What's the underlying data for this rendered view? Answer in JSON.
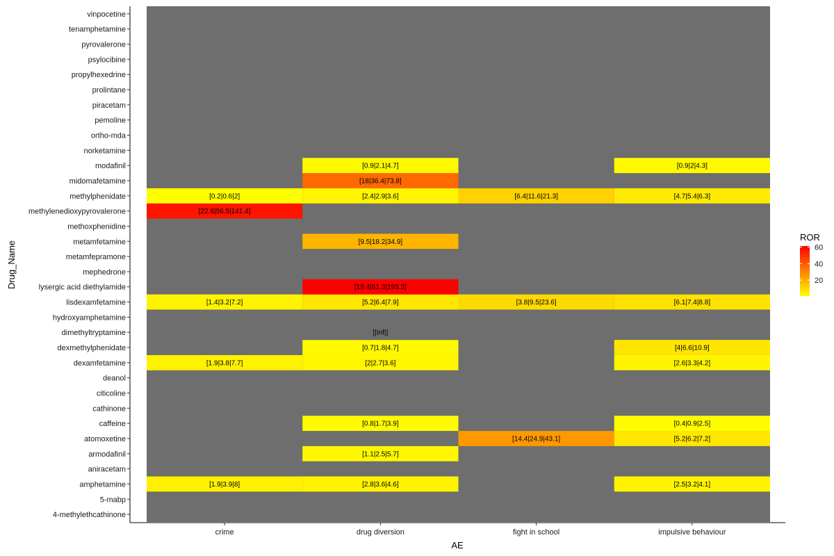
{
  "chart_data": {
    "type": "heatmap",
    "xlabel": "AE",
    "ylabel": "Drug_Name",
    "x_categories": [
      "crime",
      "drug diversion",
      "fight in school",
      "impulsive behaviour"
    ],
    "y_categories": [
      "4-methylethcathinone",
      "5-mabp",
      "amphetamine",
      "aniracetam",
      "armodafinil",
      "atomoxetine",
      "caffeine",
      "cathinone",
      "citicoline",
      "deanol",
      "dexamfetamine",
      "dexmethylphenidate",
      "dimethyltryptamine",
      "hydroxyamphetamine",
      "lisdexamfetamine",
      "lysergic acid diethylamide",
      "mephedrone",
      "metamfepramone",
      "metamfetamine",
      "methoxphenidine",
      "methylenedioxypyrovalerone",
      "methylphenidate",
      "midomafetamine",
      "modafinil",
      "norketamine",
      "ortho-mda",
      "pemoline",
      "piracetam",
      "prolintane",
      "propylhexedrine",
      "psylocibine",
      "pyrovalerone",
      "tenamphetamine",
      "vinpocetine"
    ],
    "cells": [
      {
        "drug": "amphetamine",
        "ae": "crime",
        "ror": 3.9,
        "label": "[1.9|3.9|8]"
      },
      {
        "drug": "amphetamine",
        "ae": "drug diversion",
        "ror": 3.6,
        "label": "[2.8|3.6|4.6]"
      },
      {
        "drug": "amphetamine",
        "ae": "impulsive behaviour",
        "ror": 3.2,
        "label": "[2.5|3.2|4.1]"
      },
      {
        "drug": "armodafinil",
        "ae": "drug diversion",
        "ror": 2.5,
        "label": "[1.1|2.5|5.7]"
      },
      {
        "drug": "atomoxetine",
        "ae": "fight in school",
        "ror": 24.9,
        "label": "[14.4|24.9|43.1]"
      },
      {
        "drug": "atomoxetine",
        "ae": "impulsive behaviour",
        "ror": 6.2,
        "label": "[5.2|6.2|7.2]"
      },
      {
        "drug": "caffeine",
        "ae": "drug diversion",
        "ror": 1.7,
        "label": "[0.8|1.7|3.9]"
      },
      {
        "drug": "caffeine",
        "ae": "impulsive behaviour",
        "ror": 0.9,
        "label": "[0.4|0.9|2.5]"
      },
      {
        "drug": "dexamfetamine",
        "ae": "crime",
        "ror": 3.8,
        "label": "[1.9|3.8|7.7]"
      },
      {
        "drug": "dexamfetamine",
        "ae": "drug diversion",
        "ror": 2.7,
        "label": "[2|2.7|3.6]"
      },
      {
        "drug": "dexamfetamine",
        "ae": "impulsive behaviour",
        "ror": 3.3,
        "label": "[2.6|3.3|4.2]"
      },
      {
        "drug": "dexmethylphenidate",
        "ae": "drug diversion",
        "ror": 1.8,
        "label": "[0.7|1.8|4.7]"
      },
      {
        "drug": "dexmethylphenidate",
        "ae": "impulsive behaviour",
        "ror": 6.6,
        "label": "[4|6.6|10.9]"
      },
      {
        "drug": "dimethyltryptamine",
        "ae": "drug diversion",
        "ror": null,
        "label": "[|Inf|]"
      },
      {
        "drug": "lisdexamfetamine",
        "ae": "crime",
        "ror": 3.2,
        "label": "[1.4|3.2|7.2]"
      },
      {
        "drug": "lisdexamfetamine",
        "ae": "drug diversion",
        "ror": 6.4,
        "label": "[5.2|6.4|7.9]"
      },
      {
        "drug": "lisdexamfetamine",
        "ae": "fight in school",
        "ror": 9.5,
        "label": "[3.8|9.5|23.6]"
      },
      {
        "drug": "lisdexamfetamine",
        "ae": "impulsive behaviour",
        "ror": 7.4,
        "label": "[6.1|7.4|8.8]"
      },
      {
        "drug": "lysergic acid diethylamide",
        "ae": "drug diversion",
        "ror": 61.3,
        "label": "[19.4|61.3|193.3]"
      },
      {
        "drug": "metamfetamine",
        "ae": "drug diversion",
        "ror": 18.2,
        "label": "[9.5|18.2|34.9]"
      },
      {
        "drug": "methylenedioxypyrovalerone",
        "ae": "crime",
        "ror": 56.5,
        "label": "[22.6|56.5|141.4]"
      },
      {
        "drug": "methylphenidate",
        "ae": "crime",
        "ror": 0.6,
        "label": "[0.2|0.6|2]"
      },
      {
        "drug": "methylphenidate",
        "ae": "drug diversion",
        "ror": 2.9,
        "label": "[2.4|2.9|3.6]"
      },
      {
        "drug": "methylphenidate",
        "ae": "fight in school",
        "ror": 11.6,
        "label": "[6.4|11.6|21.3]"
      },
      {
        "drug": "methylphenidate",
        "ae": "impulsive behaviour",
        "ror": 5.4,
        "label": "[4.7|5.4|6.3]"
      },
      {
        "drug": "midomafetamine",
        "ae": "drug diversion",
        "ror": 36.4,
        "label": "[18|36.4|73.8]"
      },
      {
        "drug": "modafinil",
        "ae": "drug diversion",
        "ror": 2.1,
        "label": "[0.9|2.1|4.7]"
      },
      {
        "drug": "modafinil",
        "ae": "impulsive behaviour",
        "ror": 2,
        "label": "[0.9|2|4.3]"
      }
    ],
    "legend": {
      "title": "ROR",
      "ticks": [
        20,
        40,
        60
      ],
      "range": [
        0.6,
        61.3
      ],
      "low_color": "#ffff00",
      "high_color": "#ff0000",
      "position": "right"
    },
    "panel_background": "#6e6e6e",
    "grid": false
  }
}
